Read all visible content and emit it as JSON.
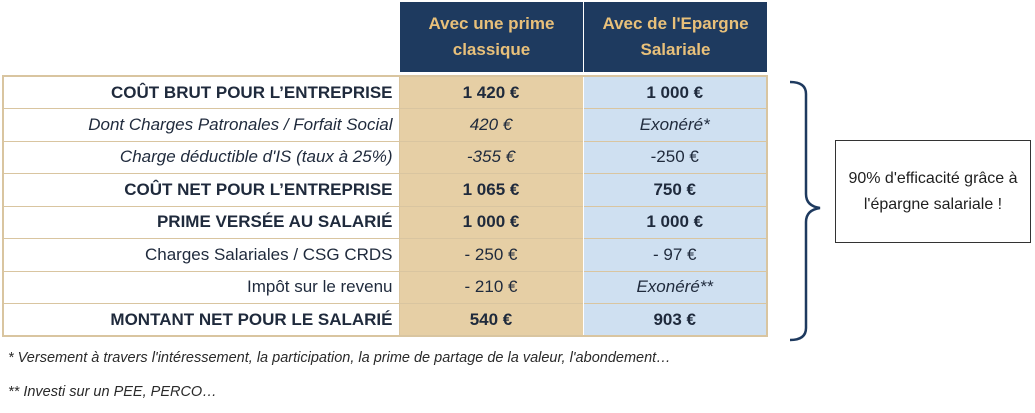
{
  "headers": [
    "Avec une prime classique",
    "Avec de l'Epargne Salariale"
  ],
  "rows": [
    {
      "label": "COÛT BRUT POUR L’ENTREPRISE",
      "prime": "1 420 €",
      "epargne": "1 000 €"
    },
    {
      "label": "Dont Charges Patronales / Forfait Social",
      "prime": "420 €",
      "epargne": "Exonéré*"
    },
    {
      "label": "Charge déductible d'IS (taux à 25%)",
      "prime": "-355 €",
      "epargne": "-250 €"
    },
    {
      "label": "COÛT NET POUR L’ENTREPRISE",
      "prime": "1 065 €",
      "epargne": "750 €"
    },
    {
      "label": "PRIME VERSÉE AU SALARIÉ",
      "prime": "1 000 €",
      "epargne": "1 000 €"
    },
    {
      "label": "Charges Salariales / CSG CRDS",
      "prime": "- 250 €",
      "epargne": "- 97 €"
    },
    {
      "label": "Impôt sur le revenu",
      "prime": "- 210 €",
      "epargne": "Exonéré**"
    },
    {
      "label": "MONTANT NET POUR LE SALARIÉ",
      "prime": "540 €",
      "epargne": "903 €"
    }
  ],
  "callout": "90% d'efficacité grâce à l'épargne salariale !",
  "footnotes": [
    "* Versement à travers l'intéressement, la participation, la prime de partage de la valeur, l'abondement…",
    "** Investi sur un PEE, PERCO…"
  ],
  "colors": {
    "header_bg": "#1e3a5f",
    "header_text": "#e8c07a",
    "prime_col": "#e6cfa5",
    "epargne_col": "#cfe0f1"
  }
}
